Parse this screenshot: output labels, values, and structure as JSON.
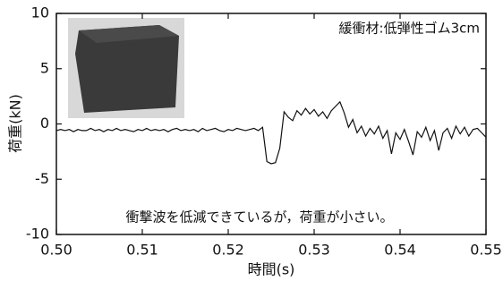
{
  "chart_data": {
    "type": "line",
    "xlabel": "時間(s)",
    "ylabel": "荷重(kN)",
    "annotations": [
      "緩衝材:低弾性ゴム3cm",
      "衝撃波を低減できているが，荷重が小さい。"
    ],
    "xlim": [
      0.5,
      0.55
    ],
    "ylim": [
      -10,
      10
    ],
    "xticks": [
      {
        "value": 0.5,
        "label": "0.50"
      },
      0.51,
      0.52,
      0.53,
      0.54,
      0.55
    ],
    "yticks": [
      10,
      5,
      0,
      -5,
      -10
    ],
    "x": [
      0.5,
      0.5005,
      0.501,
      0.5015,
      0.502,
      0.5025,
      0.503,
      0.5035,
      0.504,
      0.5045,
      0.505,
      0.5055,
      0.506,
      0.5065,
      0.507,
      0.5075,
      0.508,
      0.5085,
      0.509,
      0.5095,
      0.51,
      0.5105,
      0.511,
      0.5115,
      0.512,
      0.5125,
      0.513,
      0.5135,
      0.514,
      0.5145,
      0.515,
      0.5155,
      0.516,
      0.5165,
      0.517,
      0.5175,
      0.518,
      0.5185,
      0.519,
      0.5195,
      0.52,
      0.5205,
      0.521,
      0.5215,
      0.522,
      0.5225,
      0.523,
      0.5235,
      0.524,
      0.5245,
      0.525,
      0.5255,
      0.526,
      0.5265,
      0.527,
      0.5275,
      0.528,
      0.5285,
      0.529,
      0.5295,
      0.53,
      0.5305,
      0.531,
      0.5315,
      0.532,
      0.5325,
      0.533,
      0.5335,
      0.534,
      0.5345,
      0.535,
      0.5355,
      0.536,
      0.5365,
      0.537,
      0.5375,
      0.538,
      0.5385,
      0.539,
      0.5395,
      0.54,
      0.5405,
      0.541,
      0.5415,
      0.542,
      0.5425,
      0.543,
      0.5435,
      0.544,
      0.5445,
      0.545,
      0.5455,
      0.546,
      0.5465,
      0.547,
      0.5475,
      0.548,
      0.5485,
      0.549,
      0.5495,
      0.55
    ],
    "series": [
      {
        "color": "#111111",
        "values": [
          -0.6,
          -0.5,
          -0.6,
          -0.5,
          -0.7,
          -0.5,
          -0.6,
          -0.6,
          -0.4,
          -0.6,
          -0.5,
          -0.7,
          -0.5,
          -0.6,
          -0.4,
          -0.6,
          -0.5,
          -0.6,
          -0.7,
          -0.5,
          -0.6,
          -0.4,
          -0.6,
          -0.5,
          -0.6,
          -0.5,
          -0.7,
          -0.5,
          -0.4,
          -0.6,
          -0.5,
          -0.6,
          -0.5,
          -0.7,
          -0.4,
          -0.6,
          -0.5,
          -0.4,
          -0.6,
          -0.7,
          -0.5,
          -0.6,
          -0.4,
          -0.5,
          -0.6,
          -0.5,
          -0.4,
          -0.6,
          -0.3,
          -3.4,
          -3.6,
          -3.5,
          -2.2,
          1.1,
          0.6,
          0.3,
          1.2,
          0.8,
          1.4,
          0.9,
          1.3,
          0.7,
          1.1,
          0.5,
          1.2,
          1.6,
          2.0,
          1.0,
          -0.3,
          0.4,
          -0.8,
          -0.2,
          -1.1,
          -0.4,
          -0.9,
          -0.2,
          -1.3,
          -0.6,
          -2.7,
          -0.8,
          -1.4,
          -0.5,
          -1.6,
          -2.8,
          -0.7,
          -1.2,
          -0.3,
          -1.5,
          -0.6,
          -2.4,
          -0.8,
          -0.4,
          -1.3,
          -0.2,
          -0.9,
          -0.3,
          -1.1,
          -0.5,
          -0.4,
          -0.8,
          -1.2
        ]
      }
    ]
  }
}
